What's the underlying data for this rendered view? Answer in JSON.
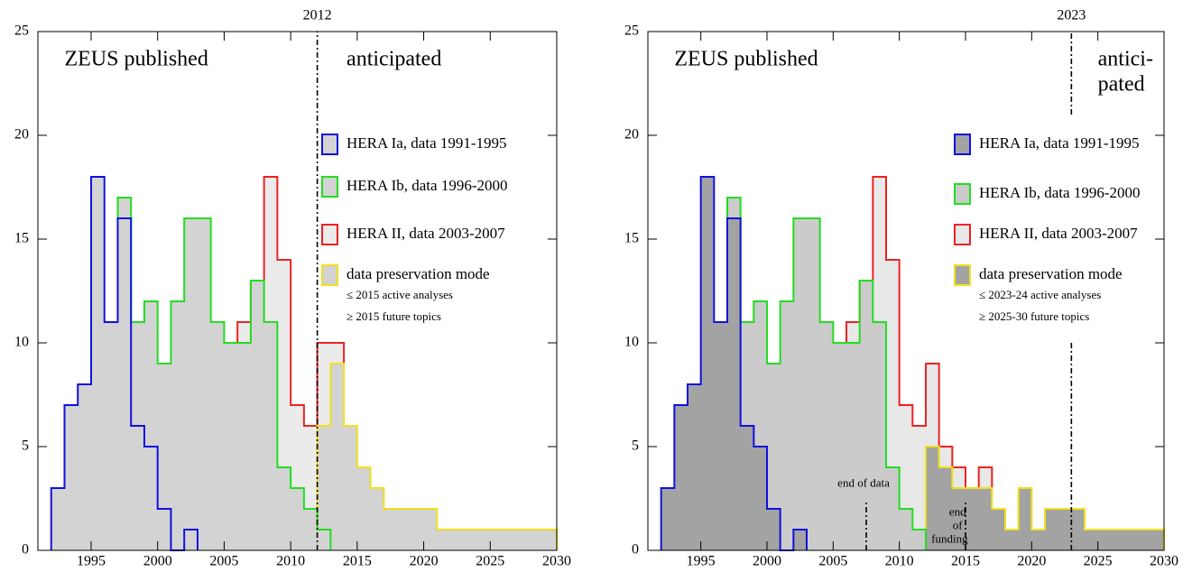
{
  "chart_data": [
    {
      "type": "histogram",
      "stacked": true,
      "bins": [
        1992,
        1993,
        1994,
        1995,
        1996,
        1997,
        1998,
        1999,
        2000,
        2001,
        2002,
        2003,
        2004,
        2005,
        2006,
        2007,
        2008,
        2009,
        2010,
        2011,
        2012,
        2013,
        2014,
        2015,
        2016,
        2017,
        2018,
        2019,
        2020,
        2021,
        2022,
        2023,
        2024,
        2025,
        2026,
        2027,
        2028,
        2029,
        2030
      ],
      "xlim": [
        1991,
        2030
      ],
      "xticks": [
        1995,
        2000,
        2005,
        2010,
        2015,
        2020,
        2025,
        2030
      ],
      "ylim": [
        0,
        25
      ],
      "yticks": [
        0,
        5,
        10,
        15,
        20,
        25
      ],
      "series": [
        {
          "name": "HERA Ia, data 1991-1995",
          "color": "#1010e0",
          "fill": "#d3d3d3",
          "values": [
            3,
            7,
            8,
            18,
            11,
            16,
            6,
            5,
            2,
            0,
            1,
            0,
            0,
            0,
            0,
            0,
            0,
            0,
            0,
            0,
            0,
            0,
            0,
            0,
            0,
            0,
            0,
            0,
            0,
            0,
            0,
            0,
            0,
            0,
            0,
            0,
            0,
            0
          ]
        },
        {
          "name": "HERA Ib, data 1996-2000",
          "color": "#22dd22",
          "fill": "#d3d3d3",
          "values": [
            0,
            0,
            0,
            0,
            0,
            1,
            5,
            7,
            7,
            12,
            15,
            16,
            11,
            10,
            10,
            13,
            11,
            4,
            3,
            2,
            1,
            0,
            0,
            0,
            0,
            0,
            0,
            0,
            0,
            0,
            0,
            0,
            0,
            0,
            0,
            0,
            0,
            0
          ]
        },
        {
          "name": "HERA II, data 2003-2007",
          "color": "#ee2222",
          "fill": "#ebebeb",
          "values": [
            0,
            0,
            0,
            0,
            0,
            0,
            0,
            0,
            0,
            0,
            0,
            0,
            0,
            0,
            1,
            0,
            7,
            10,
            4,
            4,
            4,
            1,
            0,
            0,
            0,
            0,
            0,
            0,
            0,
            0,
            0,
            0,
            0,
            0,
            0,
            0,
            0,
            0
          ]
        },
        {
          "name": "data preservation mode",
          "color": "#f0e020",
          "fill": "#d3d3d3",
          "values": [
            0,
            0,
            0,
            0,
            0,
            0,
            0,
            0,
            0,
            0,
            0,
            0,
            0,
            0,
            0,
            0,
            0,
            0,
            0,
            0,
            5,
            9,
            6,
            4,
            3,
            2,
            2,
            2,
            2,
            1,
            1,
            1,
            1,
            1,
            1,
            1,
            1,
            1
          ]
        }
      ],
      "legend_notes": [
        "≤ 2015 active analyses",
        "≥ 2015 future topics"
      ],
      "marker": {
        "value": 2012,
        "label": "2012"
      },
      "annotations": [
        "ZEUS published",
        "anticipated"
      ],
      "vlines": [
        {
          "x": 2012,
          "y": [
            0,
            25
          ]
        }
      ]
    },
    {
      "type": "histogram",
      "stacked": true,
      "bins": [
        1992,
        1993,
        1994,
        1995,
        1996,
        1997,
        1998,
        1999,
        2000,
        2001,
        2002,
        2003,
        2004,
        2005,
        2006,
        2007,
        2008,
        2009,
        2010,
        2011,
        2012,
        2013,
        2014,
        2015,
        2016,
        2017,
        2018,
        2019,
        2020,
        2021,
        2022,
        2023,
        2024,
        2025,
        2026,
        2027,
        2028,
        2029,
        2030
      ],
      "xlim": [
        1991,
        2030
      ],
      "xticks": [
        1995,
        2000,
        2005,
        2010,
        2015,
        2020,
        2025,
        2030
      ],
      "ylim": [
        0,
        25
      ],
      "yticks": [
        0,
        5,
        10,
        15,
        20,
        25
      ],
      "series": [
        {
          "name": "HERA Ia, data 1991-1995",
          "color": "#1010e0",
          "fill": "#a3a3a3",
          "values": [
            3,
            7,
            8,
            18,
            11,
            16,
            6,
            5,
            2,
            0,
            1,
            0,
            0,
            0,
            0,
            0,
            0,
            0,
            0,
            0,
            0,
            0,
            0,
            0,
            0,
            0,
            0,
            0,
            0,
            0,
            0,
            0,
            0,
            0,
            0,
            0,
            0,
            0
          ]
        },
        {
          "name": "HERA Ib, data 1996-2000",
          "color": "#22dd22",
          "fill": "#cbcbcb",
          "values": [
            0,
            0,
            0,
            0,
            0,
            1,
            5,
            7,
            7,
            12,
            15,
            16,
            11,
            10,
            10,
            13,
            11,
            4,
            2,
            1,
            0,
            0,
            0,
            0,
            0,
            0,
            0,
            0,
            0,
            0,
            0,
            0,
            0,
            0,
            0,
            0,
            0,
            0
          ]
        },
        {
          "name": "HERA II, data 2003-2007",
          "color": "#ee2222",
          "fill": "#e8e8e8",
          "values": [
            0,
            0,
            0,
            0,
            0,
            0,
            0,
            0,
            0,
            0,
            0,
            0,
            0,
            0,
            1,
            0,
            7,
            10,
            5,
            5,
            4,
            1,
            1,
            0,
            1,
            0,
            0,
            0,
            0,
            0,
            0,
            0,
            0,
            0,
            0,
            0,
            0,
            0
          ]
        },
        {
          "name": "data preservation mode",
          "color": "#f0e020",
          "fill": "#a3a3a3",
          "values": [
            0,
            0,
            0,
            0,
            0,
            0,
            0,
            0,
            0,
            0,
            0,
            0,
            0,
            0,
            0,
            0,
            0,
            0,
            0,
            0,
            5,
            4,
            3,
            3,
            3,
            2,
            1,
            3,
            1,
            2,
            2,
            2,
            1,
            1,
            1,
            1,
            1,
            1
          ]
        }
      ],
      "legend_notes": [
        "≤ 2023-24 active analyses",
        "≥ 2025-30 future topics"
      ],
      "marker": {
        "value": 2023,
        "label": "2023"
      },
      "annotations": [
        "ZEUS published",
        "antici-",
        "pated",
        "end of data",
        "end",
        "of",
        "funding"
      ],
      "vlines": [
        {
          "x": 2023,
          "y": [
            21,
            25
          ]
        },
        {
          "x": 2023,
          "y": [
            0,
            10
          ]
        },
        {
          "x": 2007.5,
          "y": [
            0,
            2.3
          ]
        },
        {
          "x": 2015,
          "y": [
            0,
            2.3
          ]
        }
      ]
    }
  ]
}
